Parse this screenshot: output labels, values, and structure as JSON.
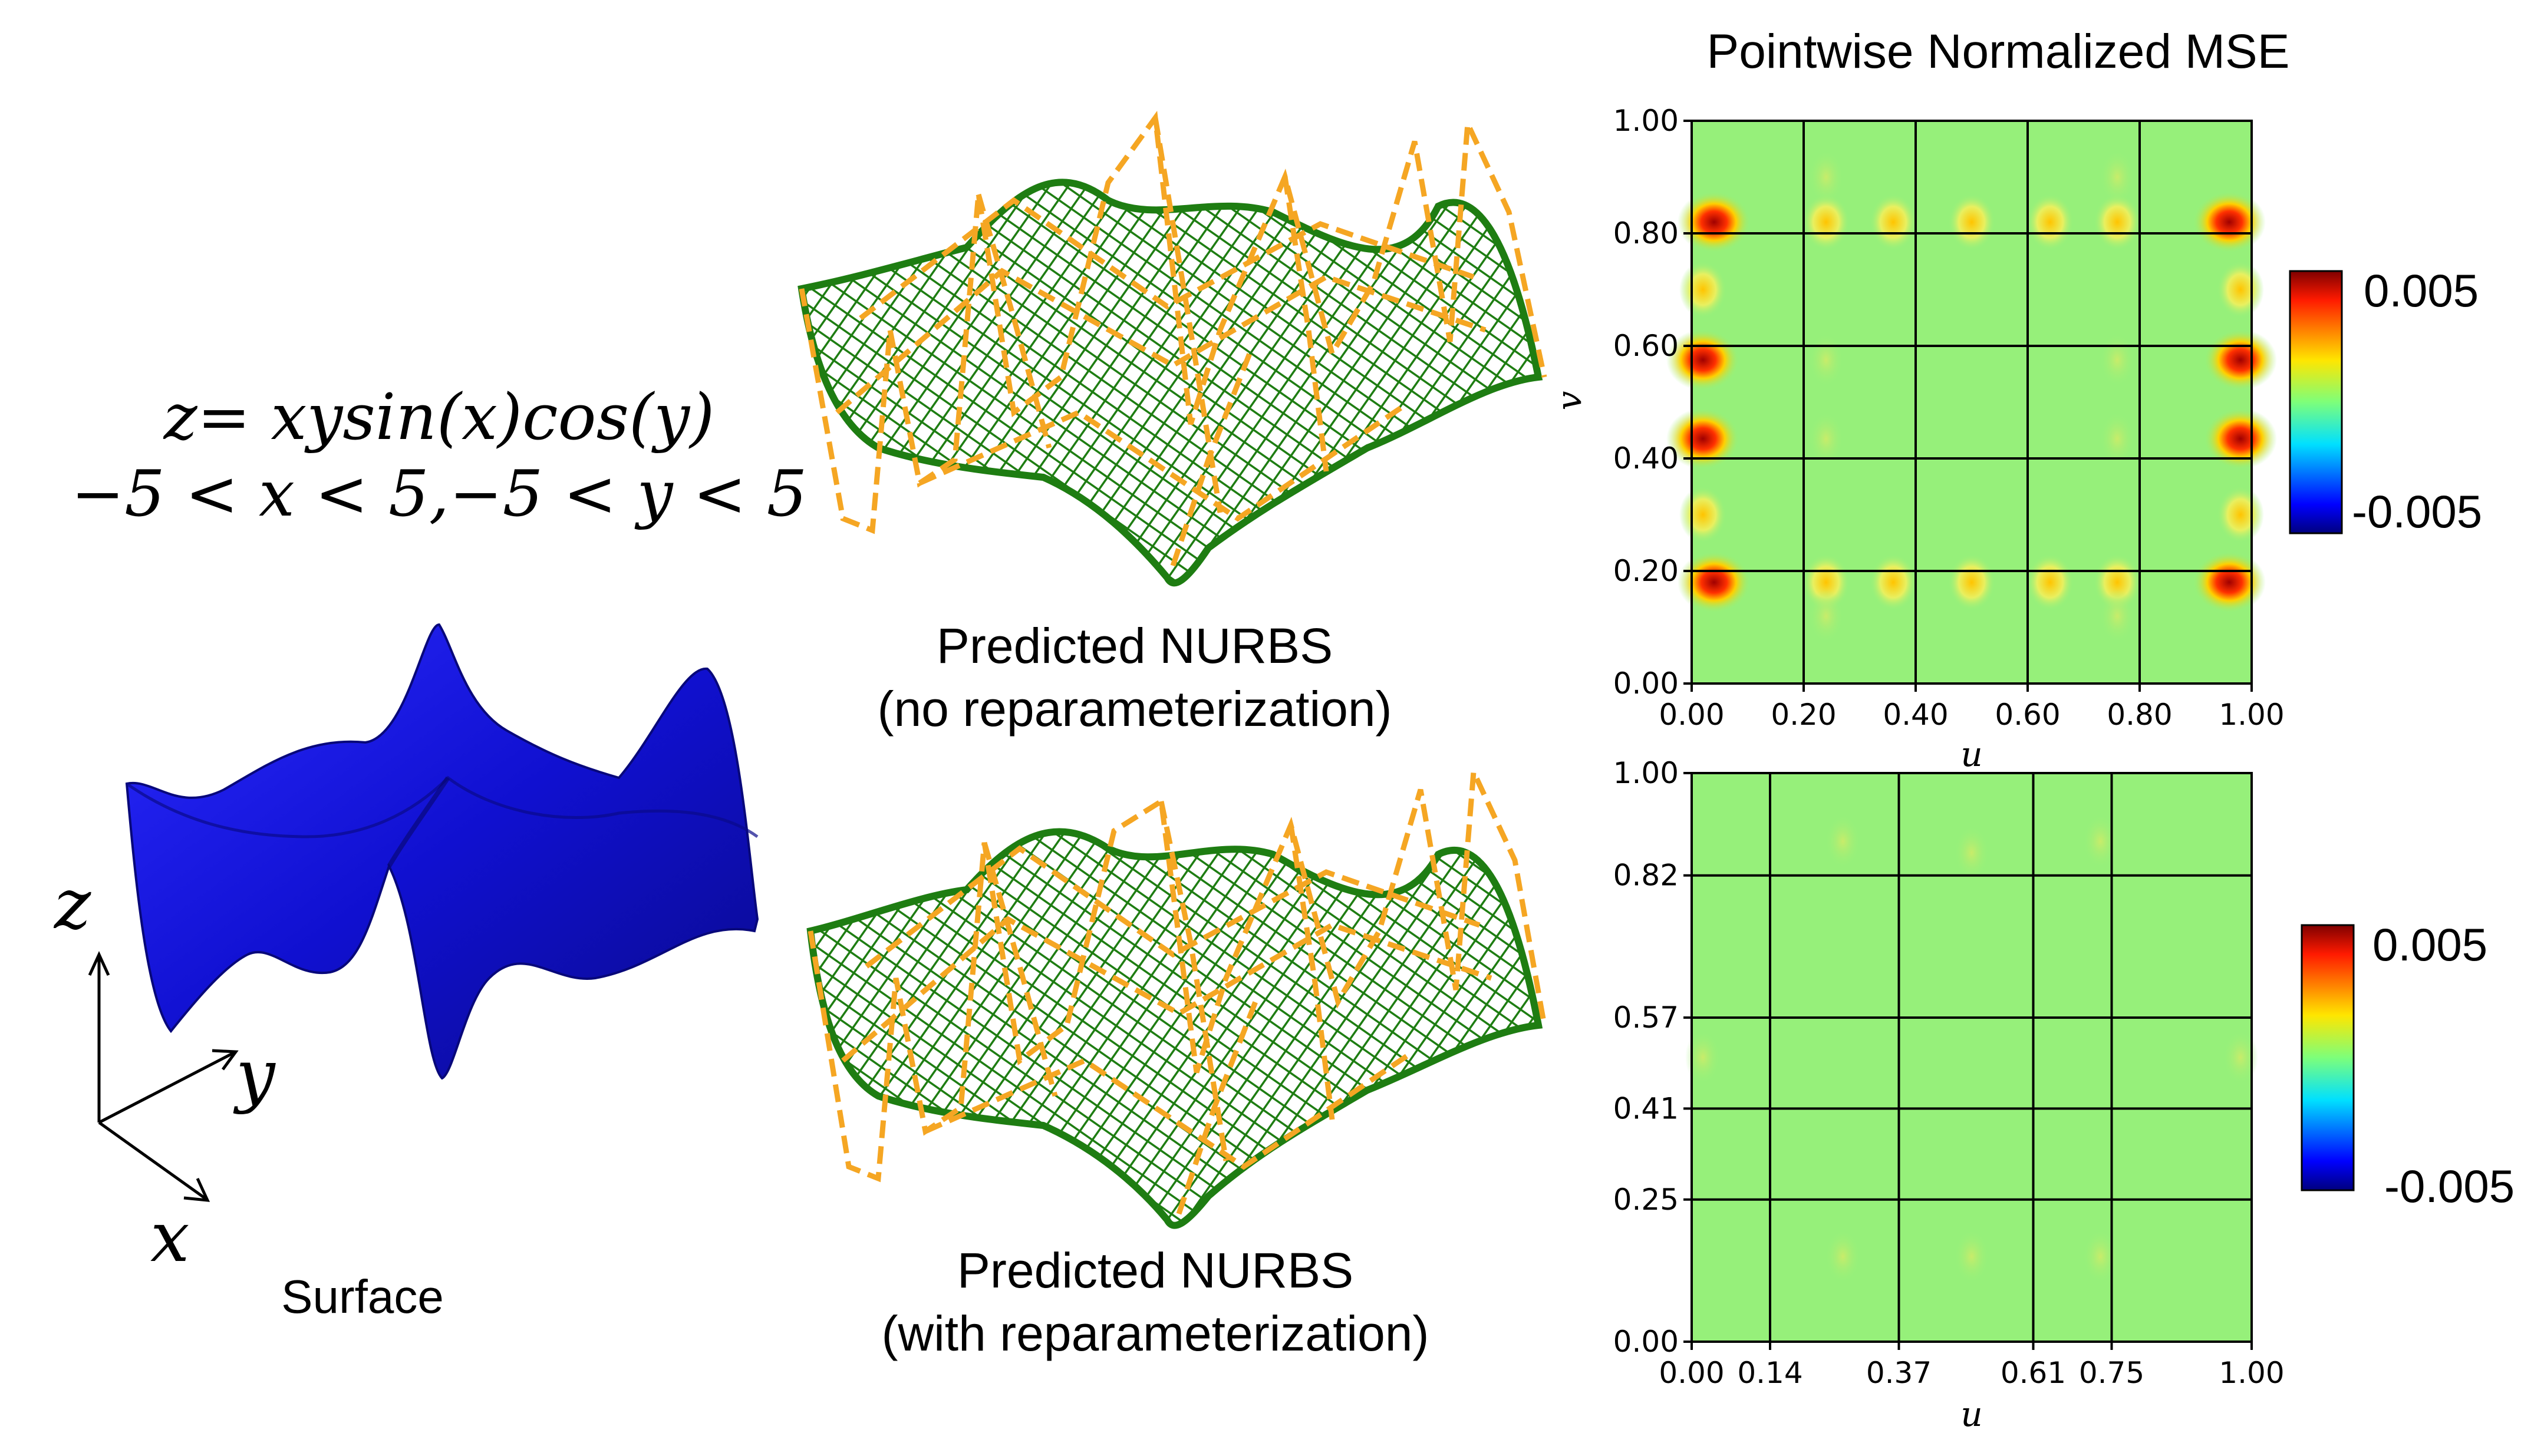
{
  "equation": {
    "line1": "z= xysin(x)cos(y)",
    "line2": "−5 < x < 5,−5 < y < 5"
  },
  "surface": {
    "label": "Surface",
    "color": "#1414e6",
    "axes": {
      "z": "z",
      "y": "y",
      "x": "x"
    }
  },
  "nurbs_top": {
    "line1": "Predicted NURBS",
    "line2": "(no reparameterization)"
  },
  "nurbs_bottom": {
    "line1": "Predicted NURBS",
    "line2": "(with reparameterization)"
  },
  "colors": {
    "mesh": "#1e7d12",
    "control_net": "#f5a623",
    "field": "#96f07a",
    "grid": "#000000"
  },
  "chart_data": [
    {
      "type": "heatmap",
      "title": "Pointwise Normalized MSE",
      "xlabel": "u",
      "ylabel": "v",
      "x_ticks": [
        0.0,
        0.2,
        0.4,
        0.6,
        0.8,
        1.0
      ],
      "x_tick_labels": [
        "0.00",
        "0.20",
        "0.40",
        "0.60",
        "0.80",
        "1.00"
      ],
      "y_ticks": [
        0.0,
        0.2,
        0.4,
        0.6,
        0.8,
        1.0
      ],
      "y_tick_labels": [
        "0.00",
        "0.20",
        "0.40",
        "0.60",
        "0.80",
        "1.00"
      ],
      "grid_lines_u": [
        0.2,
        0.4,
        0.6,
        0.8
      ],
      "grid_lines_v": [
        0.2,
        0.4,
        0.6,
        0.8
      ],
      "colorbar": {
        "min": -0.005,
        "max": 0.005,
        "min_label": "-0.005",
        "max_label": "0.005",
        "colormap": "jet"
      },
      "hotspots": [
        {
          "u": 0.04,
          "v": 0.82,
          "value": 0.0045
        },
        {
          "u": 0.96,
          "v": 0.82,
          "value": 0.0045
        },
        {
          "u": 0.04,
          "v": 0.18,
          "value": 0.0045
        },
        {
          "u": 0.96,
          "v": 0.18,
          "value": 0.0045
        },
        {
          "u": 0.02,
          "v": 0.575,
          "value": 0.005
        },
        {
          "u": 0.98,
          "v": 0.575,
          "value": 0.005
        },
        {
          "u": 0.02,
          "v": 0.435,
          "value": 0.005
        },
        {
          "u": 0.98,
          "v": 0.435,
          "value": 0.005
        },
        {
          "u": 0.02,
          "v": 0.7,
          "value": 0.003
        },
        {
          "u": 0.98,
          "v": 0.7,
          "value": 0.003
        },
        {
          "u": 0.02,
          "v": 0.3,
          "value": 0.003
        },
        {
          "u": 0.98,
          "v": 0.3,
          "value": 0.003
        },
        {
          "u": 0.24,
          "v": 0.82,
          "value": 0.002
        },
        {
          "u": 0.36,
          "v": 0.82,
          "value": 0.002
        },
        {
          "u": 0.5,
          "v": 0.82,
          "value": 0.002
        },
        {
          "u": 0.64,
          "v": 0.82,
          "value": 0.002
        },
        {
          "u": 0.76,
          "v": 0.82,
          "value": 0.002
        },
        {
          "u": 0.24,
          "v": 0.18,
          "value": 0.002
        },
        {
          "u": 0.36,
          "v": 0.18,
          "value": 0.002
        },
        {
          "u": 0.5,
          "v": 0.18,
          "value": 0.002
        },
        {
          "u": 0.64,
          "v": 0.18,
          "value": 0.002
        },
        {
          "u": 0.76,
          "v": 0.18,
          "value": 0.002
        },
        {
          "u": 0.24,
          "v": 0.575,
          "value": 0.0012
        },
        {
          "u": 0.76,
          "v": 0.575,
          "value": 0.0012
        },
        {
          "u": 0.24,
          "v": 0.435,
          "value": 0.0012
        },
        {
          "u": 0.76,
          "v": 0.435,
          "value": 0.0012
        },
        {
          "u": 0.24,
          "v": 0.9,
          "value": 0.001
        },
        {
          "u": 0.76,
          "v": 0.9,
          "value": 0.001
        },
        {
          "u": 0.24,
          "v": 0.12,
          "value": 0.001
        },
        {
          "u": 0.76,
          "v": 0.12,
          "value": 0.001
        }
      ]
    },
    {
      "type": "heatmap",
      "title": "",
      "xlabel": "u",
      "ylabel": "",
      "x_ticks": [
        0.0,
        0.14,
        0.37,
        0.61,
        0.75,
        1.0
      ],
      "x_tick_labels": [
        "0.00",
        "0.14",
        "0.37",
        "0.61",
        "0.75",
        "1.00"
      ],
      "y_ticks": [
        0.0,
        0.25,
        0.41,
        0.57,
        0.82,
        1.0
      ],
      "y_tick_labels": [
        "0.00",
        "0.25",
        "0.41",
        "0.57",
        "0.82",
        "1.00"
      ],
      "grid_lines_u": [
        0.14,
        0.37,
        0.61,
        0.75
      ],
      "grid_lines_v": [
        0.25,
        0.41,
        0.57,
        0.82
      ],
      "colorbar": {
        "min": -0.005,
        "max": 0.005,
        "min_label": "-0.005",
        "max_label": "0.005",
        "colormap": "jet"
      },
      "hotspots": [
        {
          "u": 0.27,
          "v": 0.88,
          "value": 0.0004
        },
        {
          "u": 0.5,
          "v": 0.86,
          "value": 0.0005
        },
        {
          "u": 0.73,
          "v": 0.88,
          "value": 0.0004
        },
        {
          "u": 0.27,
          "v": 0.15,
          "value": 0.0004
        },
        {
          "u": 0.5,
          "v": 0.15,
          "value": 0.0005
        },
        {
          "u": 0.73,
          "v": 0.15,
          "value": 0.0004
        },
        {
          "u": 0.02,
          "v": 0.5,
          "value": 0.0003
        },
        {
          "u": 0.98,
          "v": 0.5,
          "value": 0.0003
        }
      ]
    }
  ]
}
